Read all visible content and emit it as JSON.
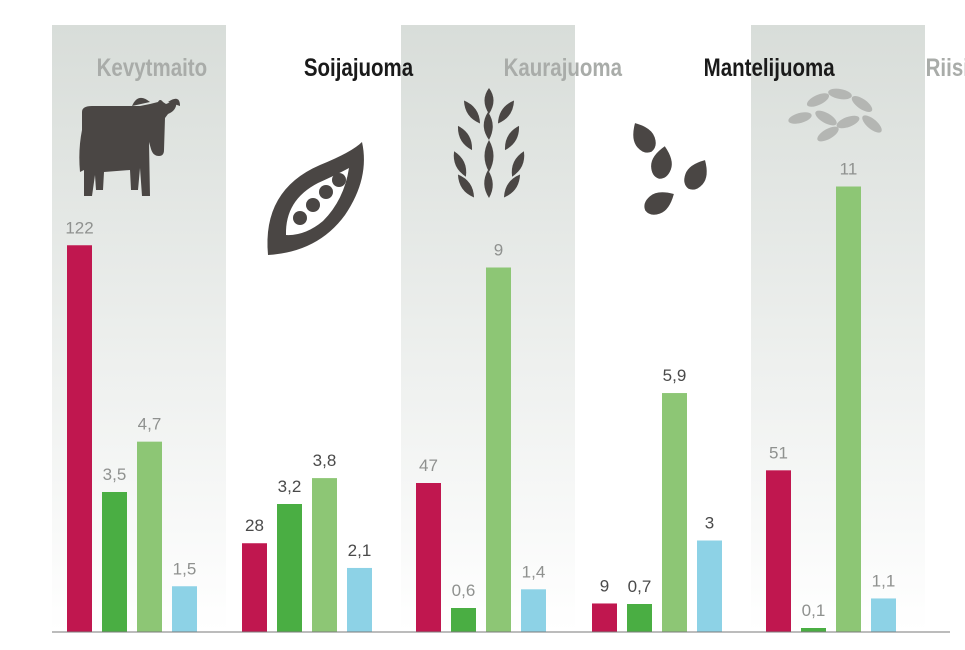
{
  "chart_data": {
    "type": "bar",
    "categories": [
      "Kevytmaito",
      "Soijajuoma",
      "Kaurajuoma",
      "Mantelijuoma",
      "Riisijuoma"
    ],
    "category_icons": [
      "cow-icon",
      "pea-pod-icon",
      "wheat-icon",
      "almond-icon",
      "rice-icon"
    ],
    "shaded_categories": [
      true,
      false,
      true,
      false,
      true
    ],
    "series": [
      {
        "color": "#c0174f",
        "values": [
          122,
          28,
          47,
          9,
          51
        ],
        "labels": [
          "122",
          "28",
          "47",
          "9",
          "51"
        ]
      },
      {
        "color": "#4aae43",
        "values": [
          3.5,
          3.2,
          0.6,
          0.7,
          0.1
        ],
        "labels": [
          "3,5",
          "3,2",
          "0,6",
          "0,7",
          "0,1"
        ]
      },
      {
        "color": "#8dc675",
        "values": [
          4.7,
          3.8,
          9,
          5.9,
          11
        ],
        "labels": [
          "4,7",
          "3,8",
          "9",
          "5,9",
          "11"
        ]
      },
      {
        "color": "#8dd2e6",
        "values": [
          1.5,
          2.1,
          1.4,
          3,
          1.1
        ],
        "labels": [
          "1,5",
          "2,1",
          "1,4",
          "3",
          "1,1"
        ]
      }
    ],
    "title": "",
    "xlabel": "",
    "ylabel": "",
    "grid": false,
    "legend": "none",
    "colors": {
      "shaded_title": "#a9aca9",
      "plain_title": "#1a1a1a",
      "label": "#4a4a4a",
      "icon": "#4a4644",
      "baseline": "#7a7a7a"
    }
  }
}
